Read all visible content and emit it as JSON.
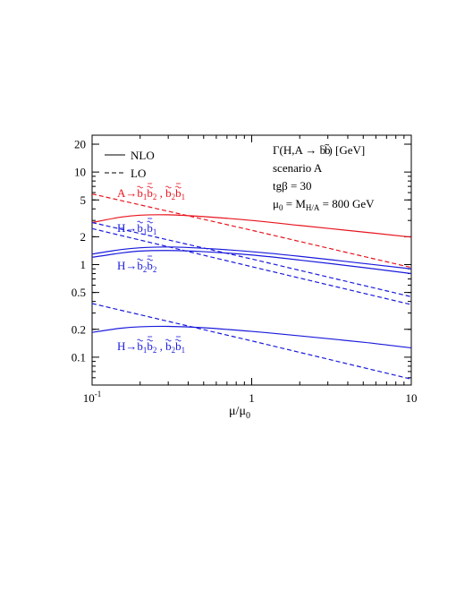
{
  "chart_data": {
    "type": "line",
    "xlabel": "μ/μ",
    "xlabel_sub": "0",
    "xscale": "log",
    "yscale": "log",
    "xlim": [
      0.1,
      10
    ],
    "ylim": [
      0.05,
      25
    ],
    "x_ticks": [
      {
        "value": 0.1,
        "base": "10",
        "exp": "-1"
      },
      {
        "value": 1,
        "base": "1",
        "exp": ""
      },
      {
        "value": 10,
        "base": "10",
        "exp": ""
      }
    ],
    "y_ticks": [
      {
        "value": 20,
        "label": "20"
      },
      {
        "value": 10,
        "label": "10"
      },
      {
        "value": 5,
        "label": "5"
      },
      {
        "value": 2,
        "label": "2"
      },
      {
        "value": 1,
        "label": "1"
      },
      {
        "value": 0.5,
        "label": "0.5"
      },
      {
        "value": 0.2,
        "label": "0.2"
      },
      {
        "value": 0.1,
        "label": "0.1"
      }
    ],
    "legend": {
      "position": "top-left",
      "entries": [
        {
          "label": "NLO",
          "style": "solid"
        },
        {
          "label": "LO",
          "style": "dashed"
        }
      ]
    },
    "info_text": {
      "position": "top-right",
      "lines": [
        "Γ(H,A → b̃b̃̄) [GeV]",
        "scenario A",
        "tgβ = 30",
        "μ0 = MH/A = 800 GeV"
      ]
    },
    "annotations": [
      {
        "text": "A→b̃1b̃̄2 , b̃2b̃̄1",
        "color": "#e8141e"
      },
      {
        "text": "H→b̃1b̃̄1",
        "color": "#1a1adc"
      },
      {
        "text": "H→b̃2b̃̄2",
        "color": "#1a1adc"
      },
      {
        "text": "H→b̃1b̃̄2 , b̃2b̃̄1",
        "color": "#1a1adc"
      }
    ],
    "series": [
      {
        "group": "A→b̃1b̃̄2 , b̃2b̃̄1",
        "order": "NLO",
        "color": "#e8141e",
        "style": "solid",
        "x": [
          0.1,
          0.15,
          0.2,
          0.3,
          0.5,
          1,
          2,
          5,
          10
        ],
        "y": [
          2.85,
          3.25,
          3.42,
          3.45,
          3.3,
          3.0,
          2.65,
          2.25,
          1.98
        ]
      },
      {
        "group": "A→b̃1b̃̄2 , b̃2b̃̄1",
        "order": "LO",
        "color": "#e8141e",
        "style": "dashed",
        "x": [
          0.1,
          1,
          10
        ],
        "y": [
          5.8,
          2.35,
          0.93
        ]
      },
      {
        "group": "H→b̃1b̃̄1",
        "order": "NLO",
        "color": "#1a1adc",
        "style": "solid",
        "x": [
          0.1,
          0.15,
          0.2,
          0.3,
          0.5,
          1,
          2,
          5,
          10
        ],
        "y": [
          1.3,
          1.45,
          1.52,
          1.55,
          1.5,
          1.38,
          1.23,
          1.03,
          0.9
        ]
      },
      {
        "group": "H→b̃1b̃̄1",
        "order": "LO",
        "color": "#1a1adc",
        "style": "dashed",
        "x": [
          0.1,
          1,
          10
        ],
        "y": [
          2.85,
          1.15,
          0.45
        ]
      },
      {
        "group": "H→b̃2b̃̄2",
        "order": "NLO",
        "color": "#1a1adc",
        "style": "solid",
        "x": [
          0.1,
          0.15,
          0.2,
          0.3,
          0.5,
          1,
          2,
          5,
          10
        ],
        "y": [
          1.2,
          1.33,
          1.4,
          1.42,
          1.38,
          1.27,
          1.12,
          0.93,
          0.8
        ]
      },
      {
        "group": "H→b̃2b̃̄2",
        "order": "LO",
        "color": "#1a1adc",
        "style": "dashed",
        "x": [
          0.1,
          1,
          10
        ],
        "y": [
          2.45,
          0.95,
          0.37
        ]
      },
      {
        "group": "H→b̃1b̃̄2 , b̃2b̃̄1",
        "order": "NLO",
        "color": "#1a1adc",
        "style": "solid",
        "x": [
          0.1,
          0.15,
          0.2,
          0.3,
          0.5,
          1,
          2,
          5,
          10
        ],
        "y": [
          0.185,
          0.205,
          0.213,
          0.215,
          0.208,
          0.19,
          0.17,
          0.145,
          0.126
        ]
      },
      {
        "group": "H→b̃1b̃̄2 , b̃2b̃̄1",
        "order": "LO",
        "color": "#1a1adc",
        "style": "dashed",
        "x": [
          0.1,
          1,
          10
        ],
        "y": [
          0.38,
          0.15,
          0.058
        ]
      }
    ]
  }
}
